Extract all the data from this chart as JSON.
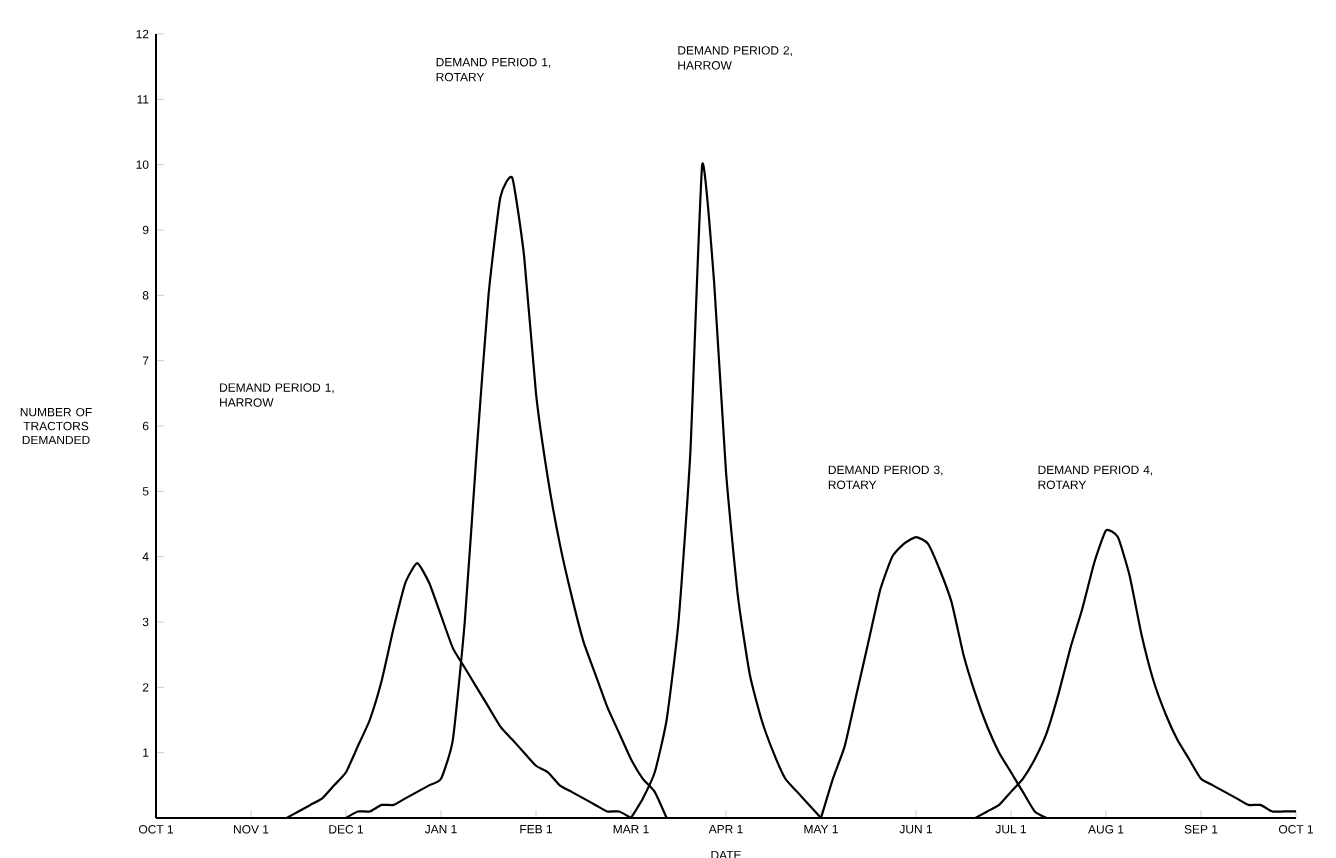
{
  "chart_data": {
    "type": "line",
    "xlabel": "DATE",
    "ylabel": "NUMBER OF TRACTORS DEMANDED",
    "ylim": [
      0,
      12
    ],
    "categories": [
      "OCT 1",
      null,
      null,
      null,
      null,
      null,
      null,
      null,
      "NOV 1",
      null,
      null,
      null,
      null,
      null,
      null,
      null,
      "DEC 1",
      null,
      null,
      null,
      null,
      null,
      null,
      null,
      "JAN 1",
      null,
      null,
      null,
      null,
      null,
      null,
      null,
      "FEB 1",
      null,
      null,
      null,
      null,
      null,
      null,
      null,
      "MAR 1",
      null,
      null,
      null,
      null,
      null,
      null,
      null,
      "APR 1",
      null,
      null,
      null,
      null,
      null,
      null,
      null,
      "MAY 1",
      null,
      null,
      null,
      null,
      null,
      null,
      null,
      "JUN 1",
      null,
      null,
      null,
      null,
      null,
      null,
      null,
      "JUL 1",
      null,
      null,
      null,
      null,
      null,
      null,
      null,
      "AUG 1",
      null,
      null,
      null,
      null,
      null,
      null,
      null,
      "SEP 1",
      null,
      null,
      null,
      null,
      null,
      null,
      null,
      "OCT 1"
    ],
    "yticks": [
      1,
      2,
      3,
      4,
      5,
      6,
      7,
      8,
      9,
      10,
      11,
      12
    ],
    "grid": false,
    "marker": "none",
    "line_style": "solid",
    "series": [
      {
        "color": "#000000",
        "values": [
          null,
          null,
          null,
          null,
          null,
          null,
          null,
          null,
          null,
          null,
          null,
          0,
          0.1,
          0.2,
          0.3,
          0.5,
          0.7,
          1.1,
          1.5,
          2.1,
          2.9,
          3.6,
          3.9,
          3.6,
          3.1,
          2.6,
          2.3,
          2.0,
          1.7,
          1.4,
          1.2,
          1.0,
          0.8,
          0.7,
          0.5,
          0.4,
          0.3,
          0.2,
          0.1,
          0.1,
          0,
          null,
          null,
          null,
          null,
          null,
          null,
          null,
          null,
          null,
          null,
          null,
          null,
          null,
          null,
          null,
          null,
          null,
          null,
          null,
          null,
          null,
          null,
          null,
          null,
          null,
          null,
          null,
          null,
          null,
          null,
          null,
          null,
          null,
          null,
          null,
          null,
          null,
          null,
          null,
          null,
          null,
          null,
          null,
          null,
          null,
          null,
          null,
          null,
          null,
          null,
          null,
          null,
          null,
          null,
          null,
          null
        ]
      },
      {
        "color": "#000000",
        "values": [
          null,
          null,
          null,
          null,
          null,
          null,
          null,
          null,
          null,
          null,
          null,
          null,
          null,
          null,
          null,
          null,
          0,
          0.1,
          0.1,
          0.2,
          0.2,
          0.3,
          0.4,
          0.5,
          0.6,
          1.2,
          3.0,
          5.6,
          8.0,
          9.5,
          9.8,
          8.6,
          6.5,
          5.2,
          4.2,
          3.4,
          2.7,
          2.2,
          1.7,
          1.3,
          0.9,
          0.6,
          0.4,
          0,
          null,
          null,
          null,
          null,
          null,
          null,
          null,
          null,
          null,
          null,
          null,
          null,
          null,
          null,
          null,
          null,
          null,
          null,
          null,
          null,
          null,
          null,
          null,
          null,
          null,
          null,
          null,
          null,
          null,
          null,
          null,
          null,
          null,
          null,
          null,
          null,
          null,
          null,
          null,
          null,
          null,
          null,
          null,
          null,
          null,
          null,
          null,
          null,
          null,
          null,
          null,
          null,
          null
        ]
      },
      {
        "color": "#000000",
        "values": [
          null,
          null,
          null,
          null,
          null,
          null,
          null,
          null,
          null,
          null,
          null,
          null,
          null,
          null,
          null,
          null,
          null,
          null,
          null,
          null,
          null,
          null,
          null,
          null,
          null,
          null,
          null,
          null,
          null,
          null,
          null,
          null,
          null,
          null,
          null,
          null,
          null,
          null,
          null,
          null,
          0,
          0.3,
          0.7,
          1.5,
          3.0,
          5.6,
          10,
          8.2,
          5.3,
          3.4,
          2.2,
          1.5,
          1.0,
          0.6,
          0.4,
          0.2,
          0,
          null,
          null,
          null,
          null,
          null,
          null,
          null,
          null,
          null,
          null,
          null,
          null,
          null,
          null,
          null,
          null,
          null,
          null,
          null,
          null,
          null,
          null,
          null,
          null,
          null,
          null,
          null,
          null,
          null,
          null,
          null,
          null,
          null,
          null,
          null,
          null,
          null,
          null,
          null,
          null
        ]
      },
      {
        "color": "#000000",
        "values": [
          null,
          null,
          null,
          null,
          null,
          null,
          null,
          null,
          null,
          null,
          null,
          null,
          null,
          null,
          null,
          null,
          null,
          null,
          null,
          null,
          null,
          null,
          null,
          null,
          null,
          null,
          null,
          null,
          null,
          null,
          null,
          null,
          null,
          null,
          null,
          null,
          null,
          null,
          null,
          null,
          null,
          null,
          null,
          null,
          null,
          null,
          null,
          null,
          null,
          null,
          null,
          null,
          null,
          null,
          null,
          null,
          0,
          0.6,
          1.1,
          1.9,
          2.7,
          3.5,
          4.0,
          4.2,
          4.3,
          4.2,
          3.8,
          3.3,
          2.5,
          1.9,
          1.4,
          1.0,
          0.7,
          0.4,
          0.1,
          0,
          null,
          null,
          null,
          null,
          null,
          null,
          null,
          null,
          null,
          null,
          null,
          null,
          null,
          null,
          null,
          null,
          null,
          null,
          null,
          null,
          null
        ]
      },
      {
        "color": "#000000",
        "values": [
          null,
          null,
          null,
          null,
          null,
          null,
          null,
          null,
          null,
          null,
          null,
          null,
          null,
          null,
          null,
          null,
          null,
          null,
          null,
          null,
          null,
          null,
          null,
          null,
          null,
          null,
          null,
          null,
          null,
          null,
          null,
          null,
          null,
          null,
          null,
          null,
          null,
          null,
          null,
          null,
          null,
          null,
          null,
          null,
          null,
          null,
          null,
          null,
          null,
          null,
          null,
          null,
          null,
          null,
          null,
          null,
          null,
          null,
          null,
          null,
          null,
          null,
          null,
          null,
          null,
          null,
          null,
          null,
          null,
          0,
          0.1,
          0.2,
          0.4,
          0.6,
          0.9,
          1.3,
          1.9,
          2.6,
          3.2,
          3.9,
          4.4,
          4.3,
          3.7,
          2.8,
          2.1,
          1.6,
          1.2,
          0.9,
          0.6,
          0.5,
          0.4,
          0.3,
          0.2,
          0.2,
          0.1,
          0.1,
          0.1
        ]
      }
    ],
    "annotations": [
      "DEMAND PERIOD 1, HARROW",
      "DEMAND PERIOD 1, ROTARY",
      "DEMAND PERIOD 2, HARROW",
      "DEMAND PERIOD 3, ROTARY",
      "DEMAND PERIOD 4, ROTARY"
    ]
  }
}
